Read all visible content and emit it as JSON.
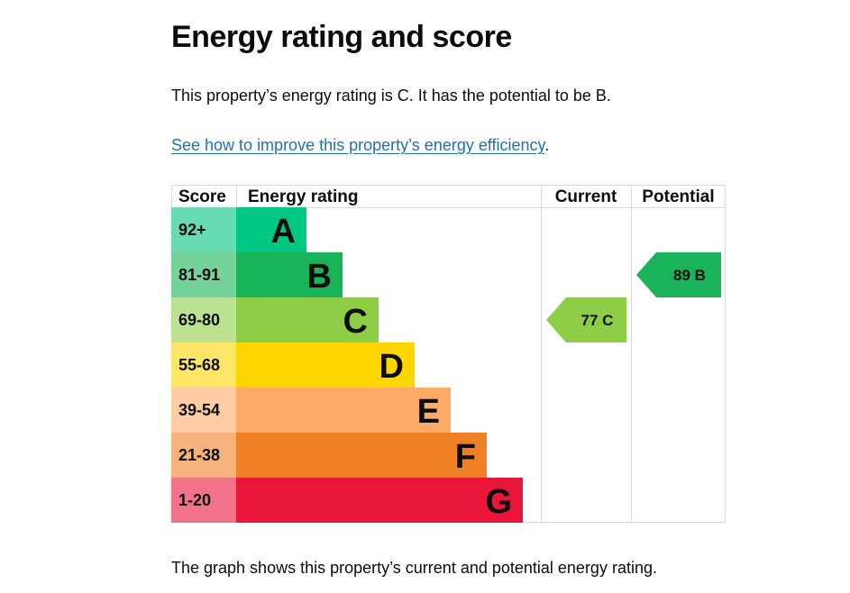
{
  "heading": "Energy rating and score",
  "intro": "This property’s energy rating is C. It has the potential to be B.",
  "link": {
    "text": "See how to improve this property’s energy efficiency",
    "suffix": "."
  },
  "caption": "The graph shows this property’s current and potential energy rating.",
  "chart_data": {
    "type": "table",
    "columns": [
      "Score",
      "Energy rating",
      "Current",
      "Potential"
    ],
    "bands": [
      {
        "letter": "A",
        "range": "92+",
        "color": "#00c781",
        "score_color": "#66dab3"
      },
      {
        "letter": "B",
        "range": "81-91",
        "color": "#19b459",
        "score_color": "#75d29b"
      },
      {
        "letter": "C",
        "range": "69-80",
        "color": "#8dce46",
        "score_color": "#bbe290"
      },
      {
        "letter": "D",
        "range": "55-68",
        "color": "#ffd500",
        "score_color": "#ffe666"
      },
      {
        "letter": "E",
        "range": "39-54",
        "color": "#fcaa65",
        "score_color": "#fdcca3"
      },
      {
        "letter": "F",
        "range": "21-38",
        "color": "#ef8023",
        "score_color": "#f5b37b"
      },
      {
        "letter": "G",
        "range": "1-20",
        "color": "#e9153b",
        "score_color": "#f27389"
      }
    ],
    "current": {
      "score": 77,
      "letter": "C",
      "label": "77  C",
      "color": "#8dce46"
    },
    "potential": {
      "score": 89,
      "letter": "B",
      "label": "89  B",
      "color": "#19b459"
    }
  }
}
